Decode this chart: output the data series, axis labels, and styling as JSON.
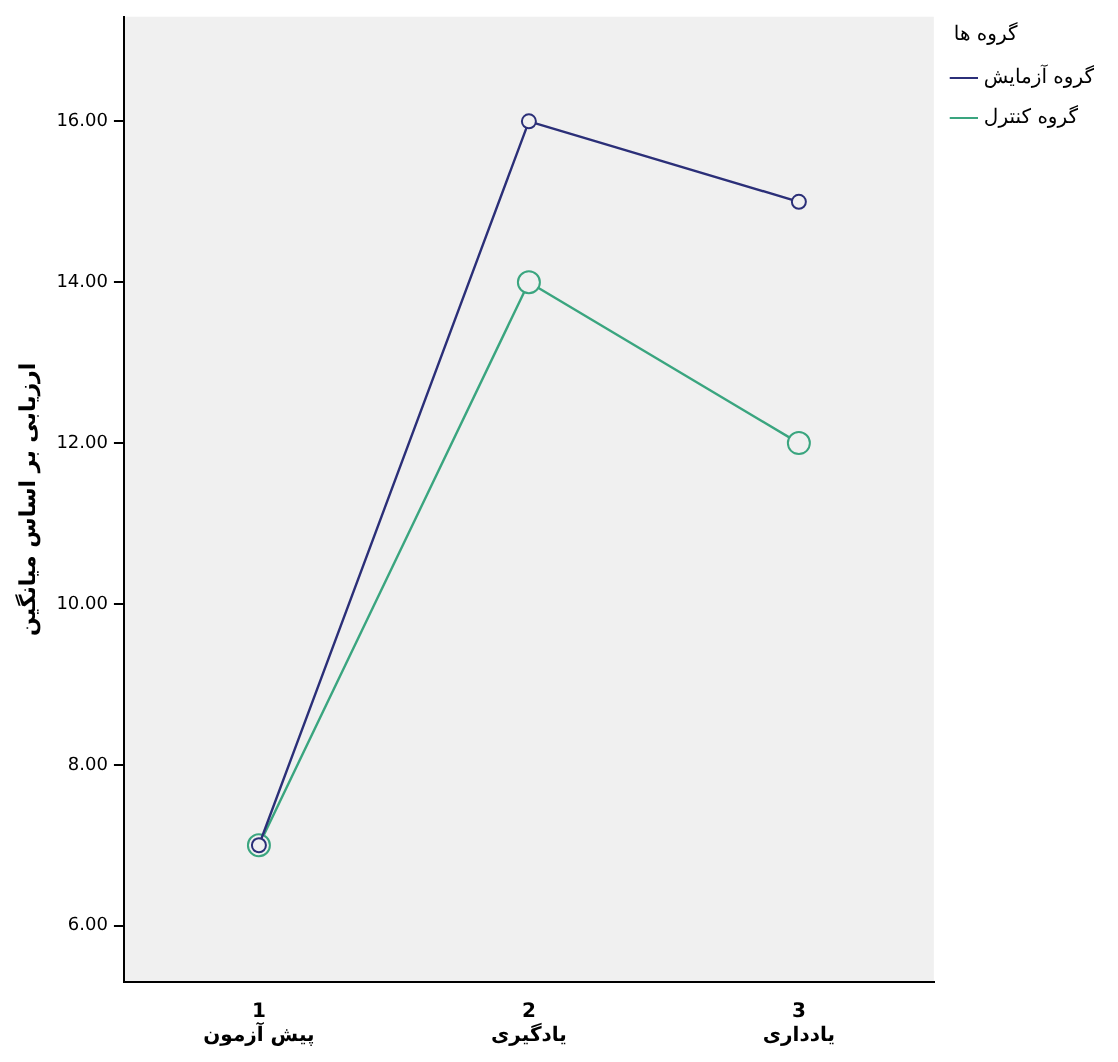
{
  "chart_data": {
    "type": "line",
    "ylabel": "ارزیابی بر اساس میانگین",
    "legend_title": "گروه ها",
    "categories": [
      "1\nپیش آزمون",
      "2\nیادگیری",
      "3\nیادداری"
    ],
    "series": [
      {
        "name": "گروه آزمایش",
        "color": "#2b2f78",
        "values": [
          7,
          16,
          15
        ]
      },
      {
        "name": "گروه کنترل",
        "color": "#3aa57f",
        "values": [
          7,
          14,
          12
        ]
      }
    ],
    "ylim": [
      5.3,
      17.3
    ],
    "yticks": [
      {
        "value": 6,
        "label": "6.00"
      },
      {
        "value": 8,
        "label": "8.00"
      },
      {
        "value": 10,
        "label": "10.00"
      },
      {
        "value": 12,
        "label": "12.00"
      },
      {
        "value": 14,
        "label": "14.00"
      },
      {
        "value": 16,
        "label": "16.00"
      }
    ],
    "grid": false,
    "legend": "top right",
    "marker": "circle",
    "line_style": "solid"
  }
}
